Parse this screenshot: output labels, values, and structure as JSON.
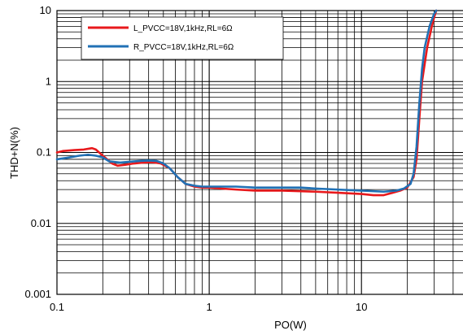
{
  "chart_data": {
    "type": "line",
    "xlabel": "PO(W)",
    "ylabel": "THD+N(%)",
    "x_scale": "log",
    "y_scale": "log",
    "xlim": [
      0.1,
      50
    ],
    "ylim": [
      0.001,
      10
    ],
    "x_ticks": [
      {
        "value": 0.1,
        "label": "0.1"
      },
      {
        "value": 1,
        "label": "1"
      },
      {
        "value": 10,
        "label": "10"
      }
    ],
    "y_ticks": [
      {
        "value": 0.001,
        "label": "0.001"
      },
      {
        "value": 0.01,
        "label": "0.01"
      },
      {
        "value": 0.1,
        "label": "0.1"
      },
      {
        "value": 1,
        "label": "1"
      },
      {
        "value": 10,
        "label": "10"
      }
    ],
    "grid": true,
    "legend_position": "top-left",
    "series": [
      {
        "name": "L_PVCC=18V,1kHz,RL=6Ω",
        "color": "#e8191c",
        "points": [
          [
            0.1,
            0.1
          ],
          [
            0.11,
            0.105
          ],
          [
            0.13,
            0.108
          ],
          [
            0.15,
            0.11
          ],
          [
            0.17,
            0.115
          ],
          [
            0.18,
            0.11
          ],
          [
            0.2,
            0.09
          ],
          [
            0.23,
            0.07
          ],
          [
            0.25,
            0.065
          ],
          [
            0.28,
            0.067
          ],
          [
            0.32,
            0.07
          ],
          [
            0.37,
            0.072
          ],
          [
            0.42,
            0.073
          ],
          [
            0.48,
            0.07
          ],
          [
            0.55,
            0.06
          ],
          [
            0.62,
            0.045
          ],
          [
            0.7,
            0.036
          ],
          [
            0.8,
            0.033
          ],
          [
            0.9,
            0.032
          ],
          [
            1.0,
            0.032
          ],
          [
            1.2,
            0.031
          ],
          [
            1.5,
            0.03
          ],
          [
            2,
            0.029
          ],
          [
            3,
            0.029
          ],
          [
            5,
            0.028
          ],
          [
            7,
            0.027
          ],
          [
            10,
            0.026
          ],
          [
            12,
            0.025
          ],
          [
            14,
            0.025
          ],
          [
            16,
            0.027
          ],
          [
            18,
            0.029
          ],
          [
            20,
            0.032
          ],
          [
            22,
            0.045
          ],
          [
            23,
            0.08
          ],
          [
            24,
            0.3
          ],
          [
            25,
            1
          ],
          [
            27,
            3
          ],
          [
            29,
            6
          ],
          [
            30,
            8
          ],
          [
            31,
            10
          ]
        ]
      },
      {
        "name": "R_PVCC=18V,1kHz,RL=6Ω",
        "color": "#2171b5",
        "points": [
          [
            0.1,
            0.08
          ],
          [
            0.12,
            0.085
          ],
          [
            0.14,
            0.09
          ],
          [
            0.16,
            0.093
          ],
          [
            0.18,
            0.09
          ],
          [
            0.2,
            0.085
          ],
          [
            0.22,
            0.075
          ],
          [
            0.26,
            0.072
          ],
          [
            0.3,
            0.074
          ],
          [
            0.35,
            0.076
          ],
          [
            0.4,
            0.077
          ],
          [
            0.45,
            0.076
          ],
          [
            0.5,
            0.07
          ],
          [
            0.55,
            0.06
          ],
          [
            0.62,
            0.045
          ],
          [
            0.7,
            0.036
          ],
          [
            0.8,
            0.034
          ],
          [
            0.9,
            0.033
          ],
          [
            1.0,
            0.033
          ],
          [
            1.5,
            0.033
          ],
          [
            2,
            0.032
          ],
          [
            3,
            0.032
          ],
          [
            4,
            0.032
          ],
          [
            5,
            0.031
          ],
          [
            7,
            0.03
          ],
          [
            10,
            0.029
          ],
          [
            14,
            0.028
          ],
          [
            17,
            0.029
          ],
          [
            19,
            0.031
          ],
          [
            21,
            0.036
          ],
          [
            22,
            0.05
          ],
          [
            23,
            0.12
          ],
          [
            24,
            0.5
          ],
          [
            25,
            1.5
          ],
          [
            26,
            3
          ],
          [
            28,
            6
          ],
          [
            30,
            9
          ],
          [
            31,
            10
          ]
        ]
      }
    ]
  }
}
